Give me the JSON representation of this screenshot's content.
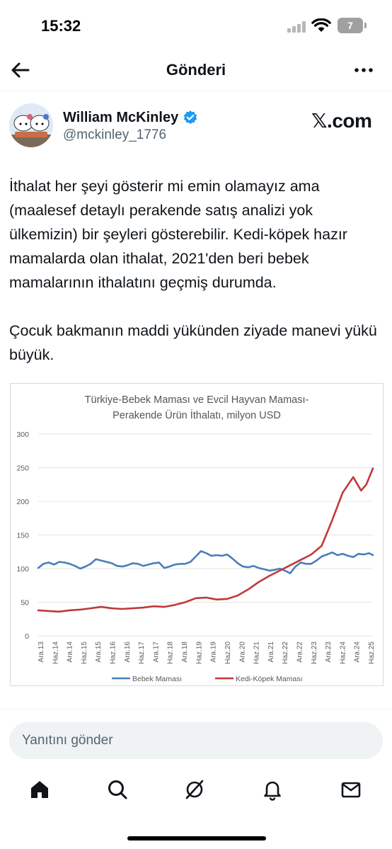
{
  "status": {
    "time": "15:32",
    "battery": "7"
  },
  "nav": {
    "title": "Gönderi",
    "back_icon": "arrow-left-icon",
    "more_icon": "more-horizontal-icon"
  },
  "author": {
    "name": "William McKinley",
    "handle": "@mckinley_1776",
    "verified_color": "#1d9bf0"
  },
  "source_label": "𝕏.com",
  "tweet": {
    "paragraph1": "İthalat her şeyi gösterir mi emin olamayız ama (maalesef detaylı perakende satış analizi yok ülkemizin) bir şeyleri gösterebilir. Kedi-köpek hazır mamalarda olan ithalat, 2021'den beri bebek mamalarının ithalatını geçmiş durumda.",
    "paragraph2": "Çocuk bakmanın maddi yükünden ziyade manevi yükü büyük."
  },
  "chart_data": {
    "type": "line",
    "title": "Türkiye-Bebek Maması ve Evcil Hayvan Maması-Perakende Ürün İthalatı, milyon USD",
    "title_lines": [
      "Türkiye-Bebek Maması ve Evcil Hayvan Maması-",
      "Perakende Ürün İthalatı, milyon USD"
    ],
    "ylim": [
      0,
      300
    ],
    "yticks": [
      0,
      50,
      100,
      150,
      200,
      250,
      300
    ],
    "xlim": [
      2013.0,
      2025.75
    ],
    "x_tick_labels": [
      "Ara.13",
      "Haz.14",
      "Ara.14",
      "Haz.15",
      "Ara.15",
      "Haz.16",
      "Ara.16",
      "Haz.17",
      "Ara.17",
      "Haz.18",
      "Ara.18",
      "Haz.19",
      "Ara.19",
      "Haz.20",
      "Ara.20",
      "Haz.21",
      "Ara.21",
      "Haz.22",
      "Ara.22",
      "Haz.23",
      "Ara.23",
      "Haz.24",
      "Ara.24",
      "Haz.25"
    ],
    "grid": "horizontal",
    "legend_position": "bottom",
    "series": [
      {
        "name": "Bebek Maması",
        "color": "#4a7ebb",
        "points": [
          [
            2013.0,
            101
          ],
          [
            2013.2,
            107
          ],
          [
            2013.4,
            109
          ],
          [
            2013.6,
            106
          ],
          [
            2013.8,
            110
          ],
          [
            2014.0,
            109
          ],
          [
            2014.2,
            107
          ],
          [
            2014.4,
            104
          ],
          [
            2014.6,
            100
          ],
          [
            2014.8,
            103
          ],
          [
            2015.0,
            107
          ],
          [
            2015.2,
            114
          ],
          [
            2015.4,
            112
          ],
          [
            2015.6,
            110
          ],
          [
            2015.8,
            108
          ],
          [
            2016.0,
            104
          ],
          [
            2016.2,
            103
          ],
          [
            2016.4,
            105
          ],
          [
            2016.6,
            108
          ],
          [
            2016.8,
            107
          ],
          [
            2017.0,
            104
          ],
          [
            2017.2,
            106
          ],
          [
            2017.4,
            108
          ],
          [
            2017.6,
            109
          ],
          [
            2017.8,
            101
          ],
          [
            2018.0,
            103
          ],
          [
            2018.2,
            106
          ],
          [
            2018.4,
            107
          ],
          [
            2018.6,
            107
          ],
          [
            2018.8,
            110
          ],
          [
            2019.0,
            118
          ],
          [
            2019.2,
            126
          ],
          [
            2019.4,
            123
          ],
          [
            2019.6,
            119
          ],
          [
            2019.8,
            120
          ],
          [
            2020.0,
            119
          ],
          [
            2020.2,
            121
          ],
          [
            2020.4,
            115
          ],
          [
            2020.6,
            108
          ],
          [
            2020.8,
            103
          ],
          [
            2021.0,
            102
          ],
          [
            2021.2,
            104
          ],
          [
            2021.4,
            101
          ],
          [
            2021.6,
            99
          ],
          [
            2021.8,
            97
          ],
          [
            2022.0,
            98
          ],
          [
            2022.2,
            100
          ],
          [
            2022.4,
            97
          ],
          [
            2022.6,
            93
          ],
          [
            2022.8,
            103
          ],
          [
            2023.0,
            109
          ],
          [
            2023.2,
            107
          ],
          [
            2023.4,
            107
          ],
          [
            2023.6,
            112
          ],
          [
            2023.8,
            118
          ],
          [
            2024.0,
            121
          ],
          [
            2024.2,
            124
          ],
          [
            2024.4,
            120
          ],
          [
            2024.6,
            122
          ],
          [
            2024.8,
            119
          ],
          [
            2025.0,
            117
          ],
          [
            2025.2,
            122
          ],
          [
            2025.4,
            121
          ],
          [
            2025.6,
            123
          ],
          [
            2025.75,
            120
          ]
        ]
      },
      {
        "name": "Kedi-Köpek Maması",
        "color": "#c0393b",
        "points": [
          [
            2013.0,
            38
          ],
          [
            2013.4,
            37
          ],
          [
            2013.8,
            36
          ],
          [
            2014.2,
            38
          ],
          [
            2014.6,
            39
          ],
          [
            2015.0,
            41
          ],
          [
            2015.4,
            43
          ],
          [
            2015.8,
            41
          ],
          [
            2016.2,
            40
          ],
          [
            2016.6,
            41
          ],
          [
            2017.0,
            42
          ],
          [
            2017.4,
            44
          ],
          [
            2017.8,
            43
          ],
          [
            2018.2,
            46
          ],
          [
            2018.6,
            50
          ],
          [
            2019.0,
            56
          ],
          [
            2019.4,
            57
          ],
          [
            2019.8,
            54
          ],
          [
            2020.2,
            55
          ],
          [
            2020.6,
            60
          ],
          [
            2021.0,
            69
          ],
          [
            2021.4,
            80
          ],
          [
            2021.8,
            89
          ],
          [
            2022.2,
            97
          ],
          [
            2022.6,
            105
          ],
          [
            2023.0,
            113
          ],
          [
            2023.4,
            121
          ],
          [
            2023.8,
            134
          ],
          [
            2024.2,
            172
          ],
          [
            2024.6,
            213
          ],
          [
            2025.0,
            236
          ],
          [
            2025.3,
            216
          ],
          [
            2025.5,
            225
          ],
          [
            2025.75,
            249
          ]
        ]
      }
    ]
  },
  "reply": {
    "placeholder": "Yanıtını gönder"
  },
  "tabs": [
    "home-icon",
    "search-icon",
    "grok-icon",
    "notifications-icon",
    "messages-icon"
  ]
}
